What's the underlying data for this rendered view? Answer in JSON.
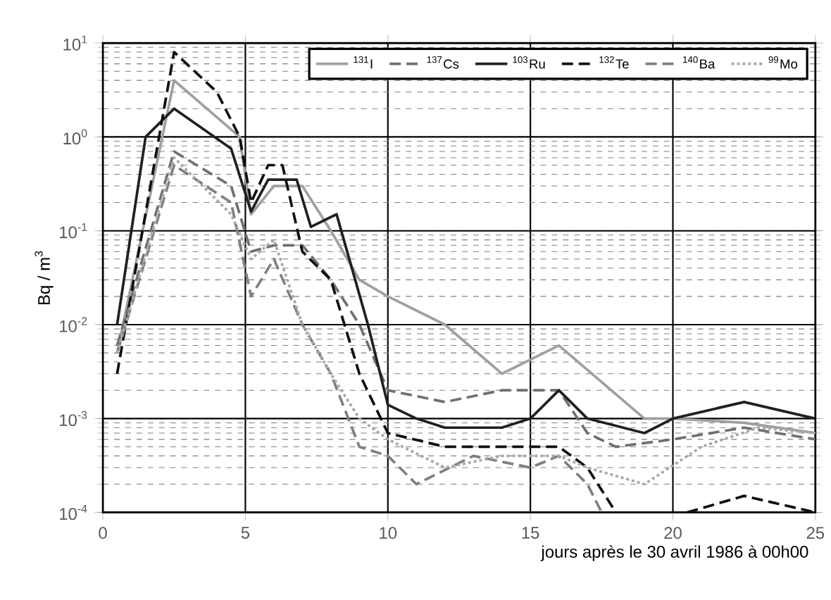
{
  "chart_data": {
    "type": "line",
    "xlabel": "jours après le 30 avril 1986 à 00h00",
    "ylabel": "Bq / m$^{3}$",
    "log": "y",
    "grid": true,
    "legend": "top right",
    "xlim": [
      0,
      25
    ],
    "xticks": [
      0,
      5,
      10,
      15,
      20,
      25
    ],
    "ylim": [
      0.0001,
      10
    ],
    "yticks": [
      {
        "value": 0.0001,
        "label": "10$^{-4}$"
      },
      {
        "value": 0.001,
        "label": "10$^{-3}$"
      },
      {
        "value": 0.01,
        "label": "10$^{-2}$"
      },
      {
        "value": 0.1,
        "label": "10$^{-1}$"
      },
      {
        "value": 1,
        "label": "10$^{0}$"
      },
      {
        "value": 10,
        "label": "10$^{1}$"
      }
    ],
    "series": [
      {
        "name": "$^{131}$I",
        "color": "#a0a0a0",
        "line_style": "solid",
        "x": [
          0.5,
          2.5,
          4.8,
          5.2,
          6,
          7,
          8,
          9,
          10,
          12,
          14,
          16,
          19,
          20,
          22.5,
          25
        ],
        "values": [
          0.005,
          4,
          1,
          0.15,
          0.3,
          0.3,
          0.1,
          0.03,
          0.02,
          0.01,
          0.003,
          0.006,
          0.001,
          0.001,
          0.0009,
          0.0007
        ]
      },
      {
        "name": "$^{137}$Cs",
        "color": "#707070",
        "line_style": "dashed",
        "x": [
          0.5,
          2.5,
          4.5,
          5.2,
          6,
          7,
          8,
          9,
          10,
          12,
          14,
          16,
          17,
          18,
          20,
          22.5,
          25
        ],
        "values": [
          0.006,
          0.7,
          0.3,
          0.06,
          0.07,
          0.07,
          0.03,
          0.01,
          0.002,
          0.0015,
          0.002,
          0.002,
          0.0007,
          0.0005,
          0.0006,
          0.0008,
          0.0006
        ]
      },
      {
        "name": "$^{103}$Ru",
        "color": "#202020",
        "line_style": "solid",
        "x": [
          0.5,
          1.5,
          2.5,
          4.5,
          5.2,
          5.8,
          6.8,
          7.3,
          8.2,
          9.3,
          10,
          11,
          12,
          14,
          15,
          16,
          17,
          19,
          20,
          22.5,
          25
        ],
        "values": [
          0.01,
          1,
          2,
          0.75,
          0.16,
          0.35,
          0.35,
          0.11,
          0.15,
          0.01,
          0.0014,
          0.001,
          0.0008,
          0.0008,
          0.001,
          0.002,
          0.001,
          0.0007,
          0.001,
          0.0015,
          0.001
        ]
      },
      {
        "name": "$^{132}$Te",
        "color": "#101010",
        "line_style": "dashed",
        "x": [
          0.5,
          2.5,
          4,
          4.8,
          5.2,
          5.8,
          6.3,
          7,
          8,
          9,
          10,
          12,
          14,
          16,
          17,
          18,
          19,
          20.5,
          22.5,
          25
        ],
        "values": [
          0.003,
          8,
          3,
          1,
          0.2,
          0.5,
          0.5,
          0.06,
          0.03,
          0.003,
          0.0007,
          0.0005,
          0.0005,
          0.0005,
          0.0003,
          0.0001,
          null,
          0.0001,
          0.00015,
          0.0001
        ]
      },
      {
        "name": "$^{140}$Ba",
        "color": "#808080",
        "line_style": "dashed",
        "x": [
          0.5,
          2.5,
          4.5,
          5.2,
          6,
          7,
          8,
          9,
          10,
          11,
          13,
          15,
          16,
          17,
          17.5
        ],
        "values": [
          0.005,
          0.5,
          0.2,
          0.02,
          0.05,
          0.01,
          0.003,
          0.0005,
          0.0004,
          0.0002,
          0.0004,
          0.0003,
          0.0004,
          0.0002,
          0.0001
        ]
      },
      {
        "name": "$^{99}$Mo",
        "color": "#a8a8a8",
        "line_style": "dotted",
        "x": [
          0.5,
          2.5,
          4.5,
          5.2,
          6,
          7,
          8,
          9,
          10,
          12,
          14,
          16,
          17,
          19,
          21,
          23,
          25
        ],
        "values": [
          0.005,
          0.6,
          0.15,
          0.05,
          0.08,
          0.01,
          0.003,
          0.001,
          0.0006,
          0.0003,
          0.0004,
          0.0004,
          0.0003,
          0.0002,
          0.0005,
          0.0008,
          0.0007
        ]
      }
    ]
  }
}
